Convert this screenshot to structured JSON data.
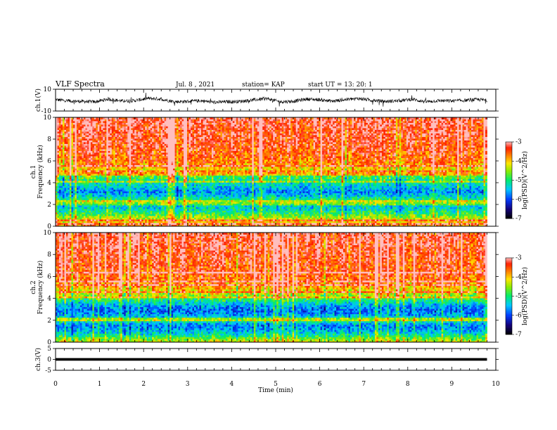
{
  "header": {
    "title": "VLF Spectra",
    "date": "Jul. 8 , 2021",
    "station": "station= KAP",
    "start_ut": "start  UT =   13: 20: 1"
  },
  "chart_data": [
    {
      "type": "line",
      "panel": "ch1-waveform",
      "ylabel": "ch.1(V)",
      "ylim": [
        -10,
        10
      ],
      "yticks": [
        "10",
        "-10"
      ],
      "xlim": [
        0,
        10
      ],
      "x_end": 9.8,
      "color": "#000000",
      "trend": [
        [
          0.0,
          0.5
        ],
        [
          0.3,
          -0.8
        ],
        [
          0.6,
          -1.2
        ],
        [
          0.9,
          -1.6
        ],
        [
          1.2,
          1.0
        ],
        [
          1.5,
          -0.8
        ],
        [
          1.8,
          -0.4
        ],
        [
          2.1,
          1.6
        ],
        [
          2.4,
          1.0
        ],
        [
          2.7,
          -1.5
        ],
        [
          3.0,
          -1.2
        ],
        [
          3.3,
          -0.5
        ],
        [
          3.6,
          -2.0
        ],
        [
          3.9,
          -1.5
        ],
        [
          4.2,
          -1.1
        ],
        [
          4.5,
          0.2
        ],
        [
          4.8,
          1.4
        ],
        [
          5.1,
          -1.5
        ],
        [
          5.4,
          -1.1
        ],
        [
          5.7,
          1.0
        ],
        [
          6.0,
          0.4
        ],
        [
          6.3,
          -1.0
        ],
        [
          6.6,
          0.6
        ],
        [
          6.9,
          1.5
        ],
        [
          7.2,
          -0.2
        ],
        [
          7.5,
          -1.2
        ],
        [
          7.8,
          -0.6
        ],
        [
          8.1,
          0.8
        ],
        [
          8.4,
          -1.5
        ],
        [
          8.7,
          -0.5
        ],
        [
          9.0,
          -0.8
        ],
        [
          9.3,
          -0.2
        ],
        [
          9.6,
          0.6
        ],
        [
          9.8,
          -0.2
        ]
      ],
      "noise_amplitude": 1.6
    },
    {
      "type": "heatmap",
      "panel": "ch1-spectrogram",
      "ylabel": "ch.1\nFrequency  (kHz)",
      "ylim": [
        0,
        10
      ],
      "yticks": [
        "0",
        "2",
        "4",
        "6",
        "8",
        "10"
      ],
      "xlim": [
        0,
        10
      ],
      "x_end": 9.8,
      "colorbar": {
        "label": "log(PSD)(V^2/Hz)",
        "range": [
          -7,
          -3
        ],
        "ticks": [
          "-3",
          "-4",
          "-5",
          "-6",
          "-7"
        ]
      },
      "profile_kHz_to_logPSD": [
        [
          0.0,
          -3.7
        ],
        [
          0.4,
          -4.0
        ],
        [
          0.8,
          -4.4
        ],
        [
          1.2,
          -4.9
        ],
        [
          1.6,
          -5.3
        ],
        [
          2.0,
          -5.4
        ],
        [
          2.4,
          -4.9
        ],
        [
          2.8,
          -5.4
        ],
        [
          3.2,
          -5.7
        ],
        [
          3.6,
          -5.4
        ],
        [
          4.0,
          -5.2
        ],
        [
          4.4,
          -4.9
        ],
        [
          4.8,
          -4.6
        ],
        [
          5.2,
          -4.1
        ],
        [
          6.0,
          -3.6
        ],
        [
          7.0,
          -3.4
        ],
        [
          8.0,
          -3.3
        ],
        [
          10.0,
          -3.2
        ]
      ],
      "bright_lines_kHz": [
        0.3,
        0.6,
        2.1,
        2.3,
        4.1,
        4.7,
        5.0,
        5.5
      ]
    },
    {
      "type": "heatmap",
      "panel": "ch2-spectrogram",
      "ylabel": "ch.2\nFrequency  (kHz)",
      "ylim": [
        0,
        10
      ],
      "yticks": [
        "0",
        "2",
        "4",
        "6",
        "8",
        "10"
      ],
      "xlim": [
        0,
        10
      ],
      "x_end": 9.8,
      "colorbar": {
        "label": "log(PSD)(V^2/Hz)",
        "range": [
          -7,
          -3
        ],
        "ticks": [
          "-3",
          "-4",
          "-5",
          "-6",
          "-7"
        ]
      },
      "profile_kHz_to_logPSD": [
        [
          0.0,
          -4.2
        ],
        [
          0.4,
          -4.7
        ],
        [
          0.8,
          -5.3
        ],
        [
          1.2,
          -5.6
        ],
        [
          1.6,
          -5.7
        ],
        [
          2.0,
          -5.0
        ],
        [
          2.4,
          -5.5
        ],
        [
          2.8,
          -5.8
        ],
        [
          3.2,
          -5.7
        ],
        [
          3.6,
          -5.3
        ],
        [
          4.0,
          -4.8
        ],
        [
          4.4,
          -4.3
        ],
        [
          5.0,
          -3.9
        ],
        [
          6.0,
          -3.5
        ],
        [
          8.0,
          -3.3
        ],
        [
          10.0,
          -3.2
        ]
      ],
      "bright_lines_kHz": [
        2.1,
        4.1,
        4.6,
        5.2,
        5.6,
        6.3
      ]
    },
    {
      "type": "line",
      "panel": "ch3-waveform",
      "ylabel": "ch.3(V)",
      "ylim": [
        -5,
        5
      ],
      "yticks": [
        "5",
        "0",
        "-5"
      ],
      "xlim": [
        0,
        10
      ],
      "x_end": 9.8,
      "band": [
        -0.6,
        0.6
      ],
      "xlabel": "Time  (min)",
      "xticks": [
        "0",
        "1",
        "2",
        "3",
        "4",
        "5",
        "6",
        "7",
        "8",
        "9",
        "10"
      ]
    }
  ]
}
